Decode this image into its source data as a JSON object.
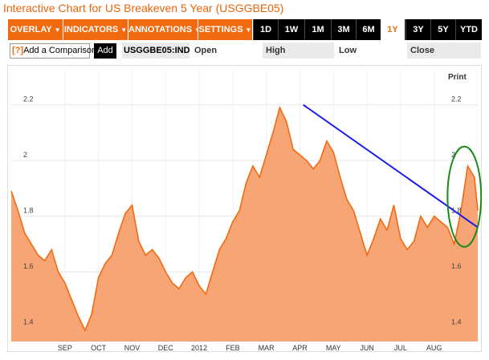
{
  "page_title": "Interactive Chart for US Breakeven 5 Year (USGGBE05)",
  "toolbar": {
    "menus": [
      {
        "label": "OVERLAY"
      },
      {
        "label": "INDICATORS"
      },
      {
        "label": "ANNOTATIONS"
      },
      {
        "label": "SETTINGS"
      }
    ],
    "ranges": [
      "1D",
      "1W",
      "1M",
      "3M",
      "6M",
      "1Y",
      "3Y",
      "5Y",
      "YTD"
    ],
    "active_range": "1Y"
  },
  "quote_bar": {
    "help_icon": "?",
    "compare_placeholder": "Add a Comparison",
    "add_label": "Add",
    "symbol": "USGGBE05:IND",
    "open_label": "Open",
    "high_label": "High",
    "low_label": "Low",
    "close_label": "Close"
  },
  "print_label": "Print",
  "colors": {
    "accent": "#f26a10",
    "area": "#f8a576",
    "trend": "#1a1aee",
    "highlight": "#1a8a1a"
  },
  "chart_data": {
    "type": "area",
    "x_ticks": [
      "SEP",
      "OCT",
      "NOV",
      "DEC",
      "2012",
      "FEB",
      "MAR",
      "APR",
      "MAY",
      "JUN",
      "JUL",
      "AUG"
    ],
    "y_ticks": [
      1.4,
      1.6,
      1.8,
      2,
      2.2
    ],
    "y_tick_labels": [
      "1.4",
      "1.6",
      "1.8",
      "2",
      "2.2"
    ],
    "ylim": [
      1.35,
      2.32
    ],
    "x_range": [
      -1.6,
      12.3
    ],
    "series": [
      {
        "x": [
          -1.6,
          -1.4,
          -1.2,
          -1.0,
          -0.8,
          -0.6,
          -0.4,
          -0.2,
          0.0,
          0.2,
          0.4,
          0.6,
          0.8,
          1.0,
          1.2,
          1.4,
          1.6,
          1.8,
          2.0,
          2.2,
          2.4,
          2.6,
          2.8,
          3.0,
          3.2,
          3.4,
          3.6,
          3.8,
          4.0,
          4.2,
          4.4,
          4.6,
          4.8,
          5.0,
          5.2,
          5.4,
          5.6,
          5.8,
          6.0,
          6.2,
          6.4,
          6.6,
          6.8,
          7.0,
          7.2,
          7.4,
          7.6,
          7.8,
          8.0,
          8.2,
          8.4,
          8.6,
          8.8,
          9.0,
          9.2,
          9.4,
          9.6,
          9.8,
          10.0,
          10.2,
          10.4,
          10.6,
          10.8,
          11.0,
          11.2,
          11.4,
          11.6,
          11.8,
          12.0,
          12.2,
          12.3
        ],
        "values": [
          1.89,
          1.82,
          1.74,
          1.7,
          1.66,
          1.64,
          1.68,
          1.6,
          1.56,
          1.5,
          1.44,
          1.39,
          1.45,
          1.58,
          1.63,
          1.66,
          1.74,
          1.81,
          1.84,
          1.71,
          1.66,
          1.68,
          1.65,
          1.6,
          1.56,
          1.54,
          1.58,
          1.6,
          1.55,
          1.52,
          1.6,
          1.68,
          1.72,
          1.78,
          1.82,
          1.92,
          1.98,
          1.94,
          2.02,
          2.1,
          2.19,
          2.14,
          2.04,
          2.02,
          2.0,
          1.97,
          2.0,
          2.07,
          2.03,
          1.94,
          1.86,
          1.82,
          1.74,
          1.66,
          1.72,
          1.79,
          1.75,
          1.84,
          1.72,
          1.68,
          1.71,
          1.8,
          1.76,
          1.8,
          1.78,
          1.76,
          1.7,
          1.82,
          1.98,
          1.94,
          1.82
        ]
      }
    ],
    "annotations": [
      {
        "type": "trendline",
        "from": [
          7.1,
          2.2
        ],
        "to": [
          12.3,
          1.76
        ]
      },
      {
        "type": "ellipse",
        "center": [
          11.9,
          1.87
        ],
        "radius_x": 0.5,
        "radius_y": 0.18
      }
    ]
  }
}
